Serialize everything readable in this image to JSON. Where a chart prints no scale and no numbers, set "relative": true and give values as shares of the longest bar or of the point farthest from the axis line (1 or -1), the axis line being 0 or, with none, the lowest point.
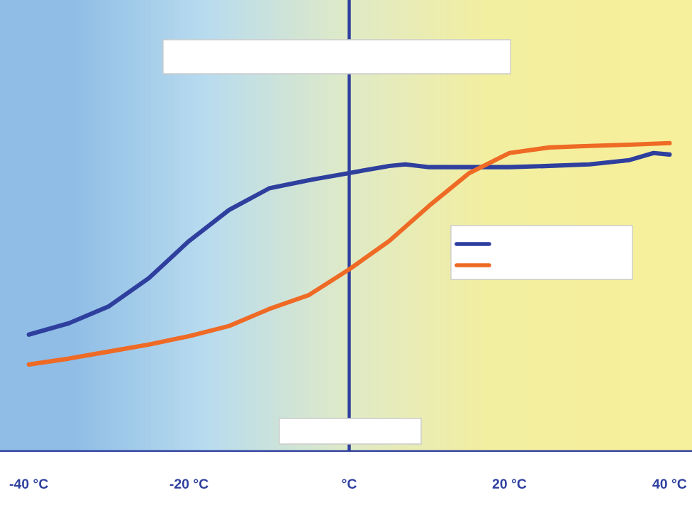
{
  "chart_data": {
    "type": "line",
    "relative": true,
    "x": [
      -40,
      -35,
      -30,
      -25,
      -20,
      -15,
      -10,
      -5,
      0,
      5,
      7,
      10,
      15,
      20,
      25,
      30,
      35,
      38,
      40
    ],
    "xlim": [
      -43.6,
      42.8
    ],
    "xticks": [
      {
        "value": -40,
        "label": "-40 °C"
      },
      {
        "value": -20,
        "label": "-20 °C"
      },
      {
        "value": 0,
        "label": "°C"
      },
      {
        "value": 20,
        "label": "20 °C"
      },
      {
        "value": 40,
        "label": "40 °C"
      }
    ],
    "series": [
      {
        "color": "#2e3f9e",
        "values": [
          0.378,
          0.415,
          0.47,
          0.562,
          0.682,
          0.783,
          0.853,
          0.88,
          0.903,
          0.926,
          0.931,
          0.922,
          0.922,
          0.922,
          0.926,
          0.931,
          0.945,
          0.968,
          0.963
        ]
      },
      {
        "color": "#ee6a25",
        "x": [
          -40,
          -35,
          -30,
          -25,
          -20,
          -15,
          -10,
          -5,
          0,
          5,
          10,
          15,
          20,
          25,
          30,
          35,
          40
        ],
        "values": [
          0.281,
          0.3,
          0.323,
          0.346,
          0.373,
          0.406,
          0.461,
          0.507,
          0.59,
          0.682,
          0.797,
          0.903,
          0.968,
          0.986,
          0.991,
          0.995,
          1
        ]
      }
    ],
    "ref_lines": [
      {
        "axis": "x",
        "value": 0,
        "color": "#2e3f9e"
      }
    ],
    "grid": false
  }
}
